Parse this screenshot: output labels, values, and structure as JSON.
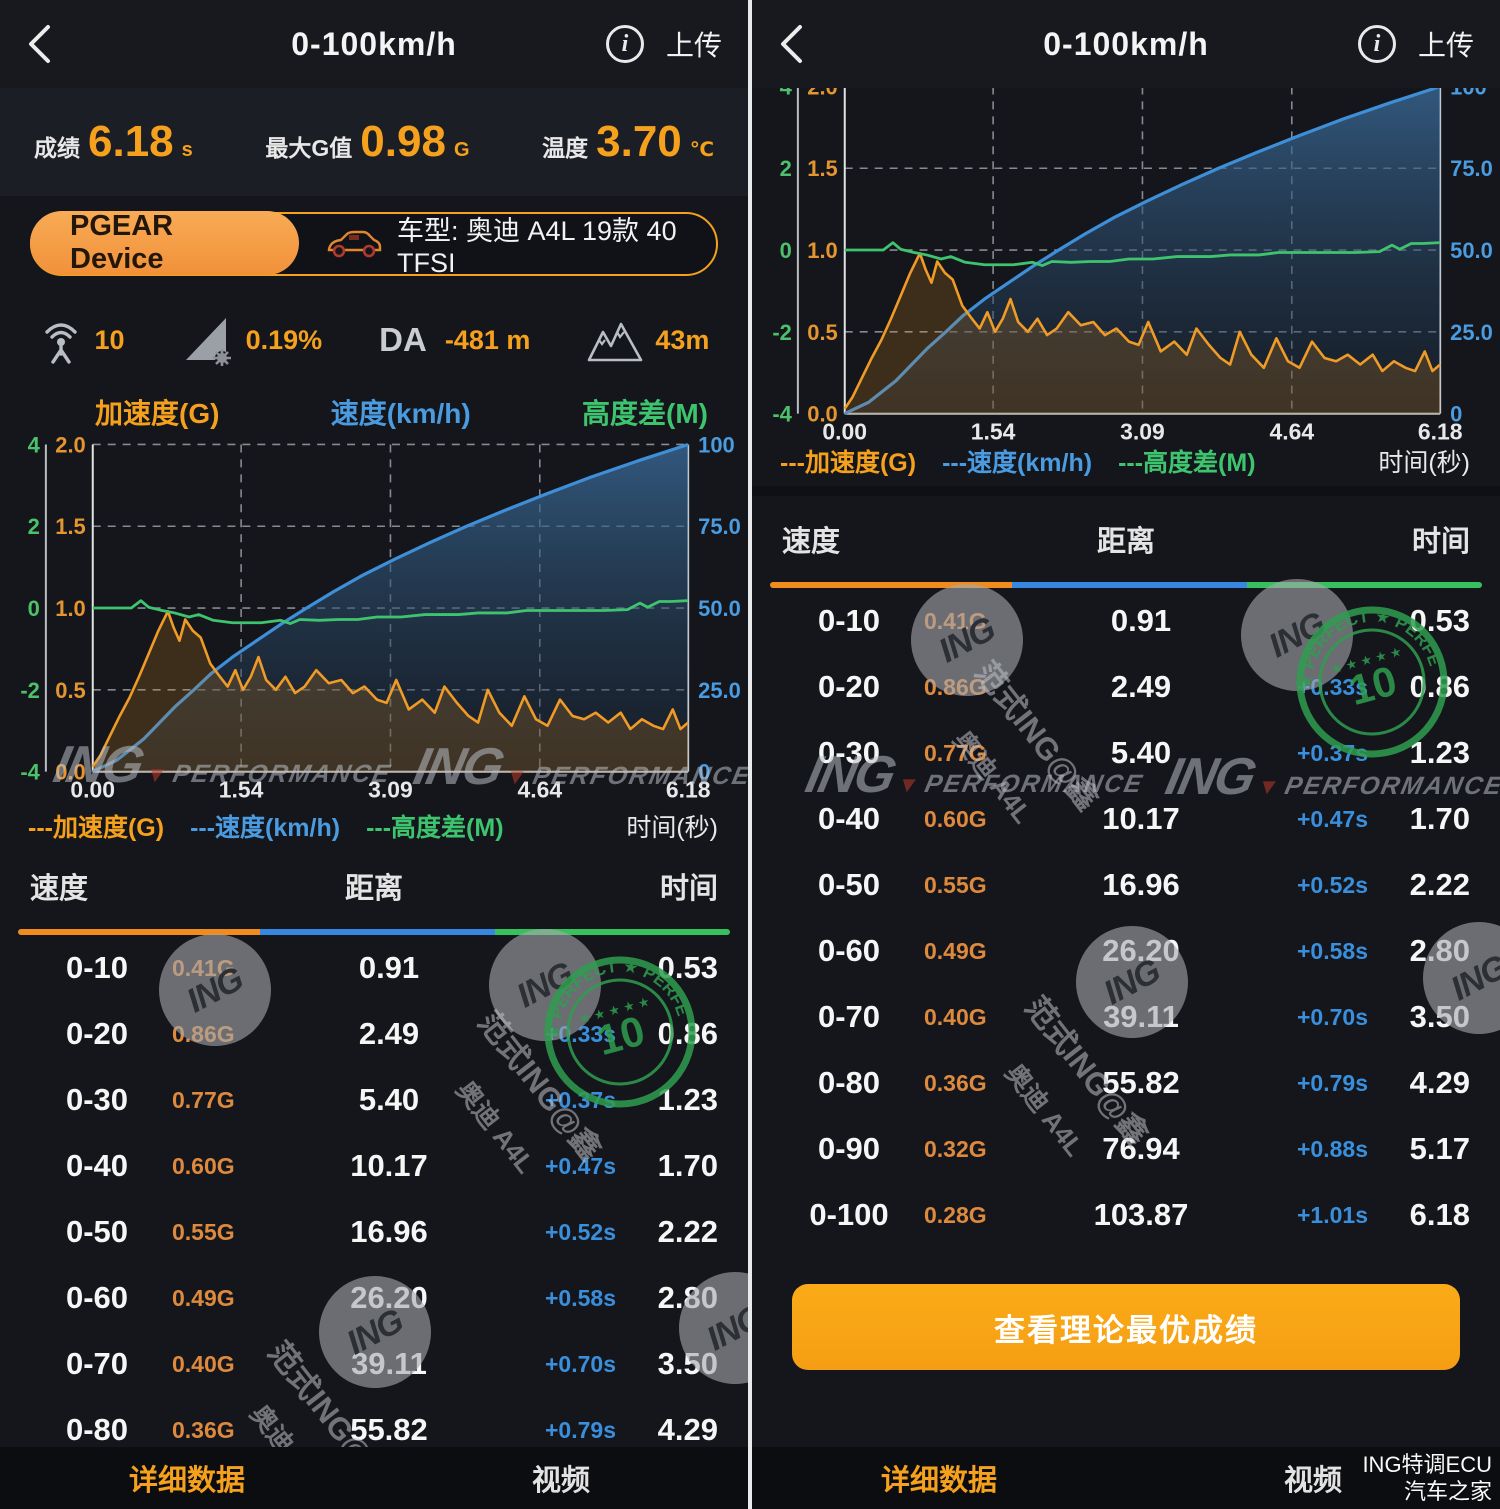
{
  "header": {
    "title": "0-100km/h",
    "upload": "上传",
    "info": "i"
  },
  "stats": [
    {
      "label": "成绩",
      "value": "6.18",
      "unit": "s"
    },
    {
      "label": "最大G值",
      "value": "0.98",
      "unit": "G"
    },
    {
      "label": "温度",
      "value": "3.70",
      "unit": "℃"
    }
  ],
  "device": {
    "name": "PGEAR Device",
    "car_label": "车型: 奥迪 A4L 19款 40 TFSI"
  },
  "sensors": {
    "signal": "10",
    "slope": "0.19%",
    "da_label": "DA",
    "da_value": "-481 m",
    "altitude": "43m"
  },
  "chart_data": {
    "type": "line",
    "titles": {
      "accel": "加速度(G)",
      "speed": "速度(km/h)",
      "alt": "高度差(M)"
    },
    "legend": {
      "accel": "---加速度(G)",
      "speed": "---速度(km/h)",
      "alt": "---高度差(M)",
      "xlabel": "时间(秒)"
    },
    "axes": {
      "green_ticks": [
        "4",
        "2",
        "0",
        "-2",
        "-4"
      ],
      "orange_ticks": [
        "2.0",
        "1.5",
        "1.0",
        "0.5",
        "0.0"
      ],
      "blue_ticks": [
        "100",
        "75.0",
        "50.0",
        "25.0",
        "0"
      ],
      "x_ticks": [
        "0.00",
        "1.54",
        "3.09",
        "4.64",
        "6.18"
      ],
      "x_grid": [
        1.54,
        3.09,
        4.64
      ],
      "x_range": [
        0,
        6.18
      ],
      "orange_range": [
        0,
        2.0
      ],
      "green_range": [
        -4,
        4
      ],
      "blue_range": [
        0,
        100
      ]
    },
    "colors": {
      "accel": "#f09b26",
      "speed": "#3e8fd8",
      "alt": "#3ec46e"
    },
    "series": {
      "speed_kmh": [
        [
          0,
          0
        ],
        [
          0.25,
          3.5
        ],
        [
          0.53,
          10
        ],
        [
          0.86,
          20
        ],
        [
          1.05,
          25
        ],
        [
          1.23,
          30
        ],
        [
          1.45,
          35
        ],
        [
          1.7,
          40
        ],
        [
          1.95,
          45
        ],
        [
          2.22,
          50
        ],
        [
          2.5,
          55
        ],
        [
          2.8,
          60
        ],
        [
          3.14,
          65
        ],
        [
          3.5,
          70
        ],
        [
          3.88,
          75
        ],
        [
          4.29,
          80
        ],
        [
          4.72,
          85
        ],
        [
          5.17,
          90
        ],
        [
          5.66,
          95
        ],
        [
          6.18,
          100
        ]
      ],
      "accel_g": [
        [
          0,
          0.03
        ],
        [
          0.08,
          0.1
        ],
        [
          0.18,
          0.22
        ],
        [
          0.28,
          0.34
        ],
        [
          0.38,
          0.45
        ],
        [
          0.48,
          0.58
        ],
        [
          0.58,
          0.72
        ],
        [
          0.68,
          0.86
        ],
        [
          0.78,
          0.98
        ],
        [
          0.84,
          0.88
        ],
        [
          0.9,
          0.8
        ],
        [
          0.96,
          0.93
        ],
        [
          1.04,
          0.86
        ],
        [
          1.12,
          0.82
        ],
        [
          1.22,
          0.66
        ],
        [
          1.32,
          0.58
        ],
        [
          1.4,
          0.52
        ],
        [
          1.48,
          0.62
        ],
        [
          1.56,
          0.5
        ],
        [
          1.64,
          0.58
        ],
        [
          1.72,
          0.7
        ],
        [
          1.8,
          0.56
        ],
        [
          1.9,
          0.5
        ],
        [
          2.0,
          0.58
        ],
        [
          2.1,
          0.48
        ],
        [
          2.2,
          0.52
        ],
        [
          2.32,
          0.62
        ],
        [
          2.45,
          0.54
        ],
        [
          2.58,
          0.56
        ],
        [
          2.7,
          0.48
        ],
        [
          2.82,
          0.52
        ],
        [
          2.95,
          0.44
        ],
        [
          3.05,
          0.42
        ],
        [
          3.15,
          0.56
        ],
        [
          3.28,
          0.38
        ],
        [
          3.42,
          0.44
        ],
        [
          3.55,
          0.36
        ],
        [
          3.65,
          0.52
        ],
        [
          3.78,
          0.42
        ],
        [
          3.9,
          0.34
        ],
        [
          4.0,
          0.3
        ],
        [
          4.1,
          0.5
        ],
        [
          4.22,
          0.36
        ],
        [
          4.35,
          0.28
        ],
        [
          4.48,
          0.46
        ],
        [
          4.6,
          0.32
        ],
        [
          4.72,
          0.28
        ],
        [
          4.85,
          0.44
        ],
        [
          4.98,
          0.34
        ],
        [
          5.1,
          0.32
        ],
        [
          5.22,
          0.36
        ],
        [
          5.35,
          0.3
        ],
        [
          5.48,
          0.36
        ],
        [
          5.58,
          0.26
        ],
        [
          5.7,
          0.32
        ],
        [
          5.82,
          0.28
        ],
        [
          5.92,
          0.26
        ],
        [
          6.02,
          0.38
        ],
        [
          6.1,
          0.26
        ],
        [
          6.18,
          0.3
        ]
      ],
      "alt_m": [
        [
          0,
          0
        ],
        [
          0.4,
          0
        ],
        [
          0.5,
          0.18
        ],
        [
          0.58,
          0.02
        ],
        [
          0.7,
          -0.05
        ],
        [
          0.85,
          -0.12
        ],
        [
          1.0,
          -0.22
        ],
        [
          1.1,
          -0.16
        ],
        [
          1.25,
          -0.3
        ],
        [
          1.45,
          -0.36
        ],
        [
          1.75,
          -0.36
        ],
        [
          1.95,
          -0.3
        ],
        [
          2.05,
          -0.38
        ],
        [
          2.15,
          -0.28
        ],
        [
          2.35,
          -0.3
        ],
        [
          2.55,
          -0.28
        ],
        [
          2.75,
          -0.28
        ],
        [
          2.95,
          -0.22
        ],
        [
          3.2,
          -0.22
        ],
        [
          3.45,
          -0.16
        ],
        [
          3.8,
          -0.16
        ],
        [
          4.0,
          -0.12
        ],
        [
          4.3,
          -0.12
        ],
        [
          4.5,
          -0.06
        ],
        [
          4.9,
          -0.06
        ],
        [
          5.3,
          -0.06
        ],
        [
          5.55,
          -0.04
        ],
        [
          5.68,
          0.12
        ],
        [
          5.76,
          0.02
        ],
        [
          5.88,
          0.16
        ],
        [
          6.0,
          0.16
        ],
        [
          6.18,
          0.18
        ]
      ]
    }
  },
  "table": {
    "headers": [
      "速度",
      "距离",
      "时间"
    ],
    "rows": [
      [
        "0-10",
        "0.41G",
        "0.91",
        "",
        "0.53"
      ],
      [
        "0-20",
        "0.86G",
        "2.49",
        "+0.33s",
        "0.86"
      ],
      [
        "0-30",
        "0.77G",
        "5.40",
        "+0.37s",
        "1.23"
      ],
      [
        "0-40",
        "0.60G",
        "10.17",
        "+0.47s",
        "1.70"
      ],
      [
        "0-50",
        "0.55G",
        "16.96",
        "+0.52s",
        "2.22"
      ],
      [
        "0-60",
        "0.49G",
        "26.20",
        "+0.58s",
        "2.80"
      ],
      [
        "0-70",
        "0.40G",
        "39.11",
        "+0.70s",
        "3.50"
      ],
      [
        "0-80",
        "0.36G",
        "55.82",
        "+0.79s",
        "4.29"
      ],
      [
        "0-90",
        "0.32G",
        "76.94",
        "+0.88s",
        "5.17"
      ],
      [
        "0-100",
        "0.28G",
        "103.87",
        "+1.01s",
        "6.18"
      ]
    ]
  },
  "button": {
    "best_result": "查看理论最优成绩"
  },
  "tabs": {
    "detail": "详细数据",
    "video": "视频"
  },
  "watermarks": {
    "logo_main": "ING",
    "logo_sub": "PERFORMANCE",
    "circle_text": "ING",
    "stamp_arc": "★ PERFECT ★ PERFECT ★",
    "stamp_num": "10",
    "rot_line1": "范式ING@鑫",
    "rot_line2": "奥迪 A4L",
    "corner_line1": "ING特调ECU",
    "corner_line2": "汽车之家"
  }
}
